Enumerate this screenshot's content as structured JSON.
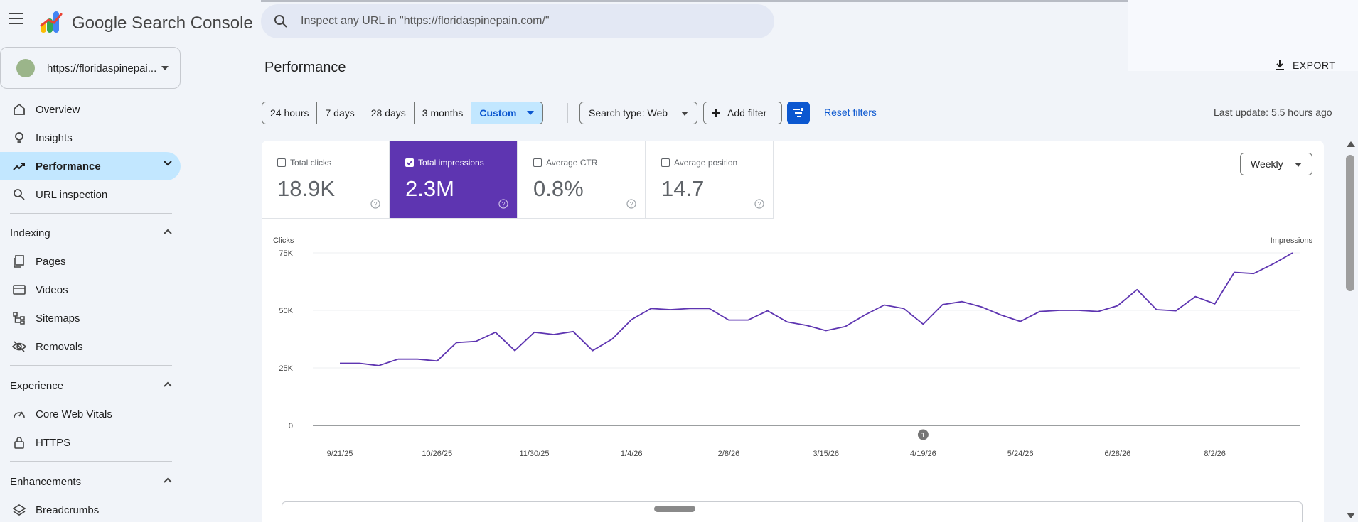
{
  "app": {
    "brand": "Google Search Console"
  },
  "search": {
    "placeholder": "Inspect any URL in \"https://floridaspinepain.com/\""
  },
  "property": {
    "label": "https://floridaspinepai..."
  },
  "sidebar": {
    "items": [
      {
        "label": "Overview",
        "icon": "home-icon"
      },
      {
        "label": "Insights",
        "icon": "lightbulb-icon"
      },
      {
        "label": "Performance",
        "icon": "trending-up-icon",
        "active": true
      },
      {
        "label": "URL inspection",
        "icon": "search-icon"
      }
    ],
    "indexing": {
      "title": "Indexing",
      "items": [
        {
          "label": "Pages",
          "icon": "pages-icon"
        },
        {
          "label": "Videos",
          "icon": "video-icon"
        },
        {
          "label": "Sitemaps",
          "icon": "sitemap-icon"
        },
        {
          "label": "Removals",
          "icon": "eye-off-icon"
        }
      ]
    },
    "experience": {
      "title": "Experience",
      "items": [
        {
          "label": "Core Web Vitals",
          "icon": "speedometer-icon"
        },
        {
          "label": "HTTPS",
          "icon": "lock-icon"
        }
      ]
    },
    "enhancements": {
      "title": "Enhancements",
      "items": [
        {
          "label": "Breadcrumbs",
          "icon": "layers-icon"
        }
      ]
    }
  },
  "main": {
    "title": "Performance",
    "export_label": "EXPORT",
    "date_ranges": [
      "24 hours",
      "7 days",
      "28 days",
      "3 months",
      "Custom"
    ],
    "selected_range": "Custom",
    "search_type": "Search type: Web",
    "add_filter": "Add filter",
    "reset_filters": "Reset filters",
    "last_update": "Last update: 5.5 hours ago",
    "granularity": "Weekly"
  },
  "metrics": [
    {
      "label": "Total clicks",
      "value": "18.9K",
      "checked": false
    },
    {
      "label": "Total impressions",
      "value": "2.3M",
      "checked": true
    },
    {
      "label": "Average CTR",
      "value": "0.8%",
      "checked": false
    },
    {
      "label": "Average position",
      "value": "14.7",
      "checked": false
    }
  ],
  "colors": {
    "impressions": "#5e35b1",
    "accent": "#0b57d0",
    "active_nav": "#c2e7ff"
  },
  "chart_data": {
    "type": "line",
    "ylabel_left": "Clicks",
    "ylabel_right": "Impressions",
    "ylim": [
      0,
      75000
    ],
    "yticks": [
      "0",
      "25K",
      "50K",
      "75K"
    ],
    "xtick_labels": [
      "9/21/25",
      "10/26/25",
      "11/30/25",
      "1/4/26",
      "2/8/26",
      "3/15/26",
      "4/19/26",
      "5/24/26",
      "6/28/26",
      "8/2/26"
    ],
    "annotation": "1",
    "annotation_index": 30,
    "series": [
      {
        "values": [
          27000,
          27000,
          26000,
          28800,
          28800,
          28000,
          36000,
          36500,
          40500,
          32500,
          40500,
          39500,
          40800,
          32500,
          37500,
          46000,
          50800,
          50300,
          50800,
          50800,
          45800,
          45800,
          49800,
          45000,
          43500,
          41200,
          43000,
          48000,
          52300,
          50800,
          44000,
          52500,
          53800,
          51500,
          48000,
          45200,
          49500,
          50000,
          50000,
          49500,
          52000,
          59000,
          50300,
          49800,
          56000,
          52800,
          66500,
          66000,
          70200,
          75000
        ]
      }
    ]
  }
}
